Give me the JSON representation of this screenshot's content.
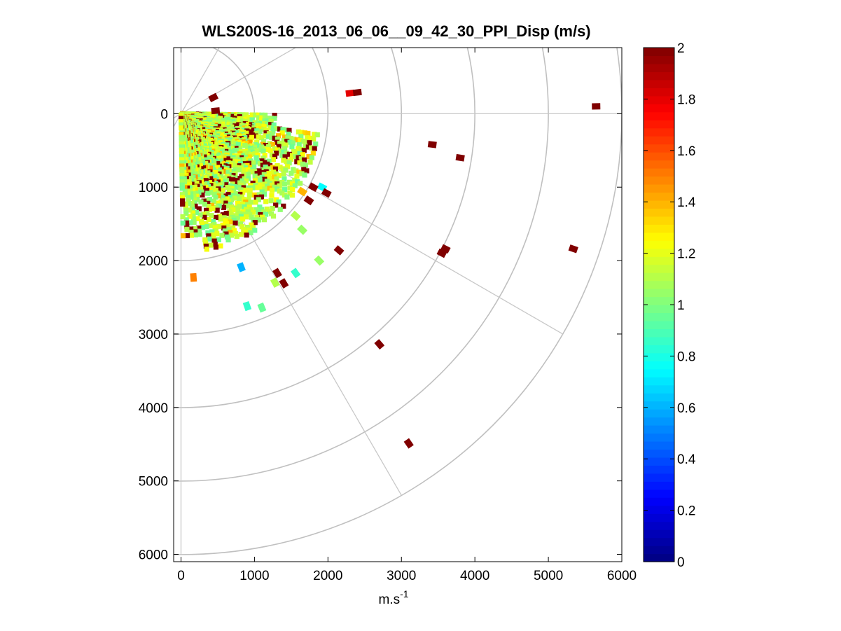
{
  "chart_data": {
    "type": "heatmap",
    "subtype": "polar-ppi",
    "title": "WLS200S-16_2013_06_06__09_42_30_PPI_Disp (m/s)",
    "xlabel_base": "m.s",
    "xlabel_sup": "-1",
    "ylabel": "",
    "xlim": [
      -100,
      6000
    ],
    "ylim": [
      6100,
      -900
    ],
    "y_reversed": true,
    "x_ticks": [
      "0",
      "1000",
      "2000",
      "3000",
      "4000",
      "5000",
      "6000"
    ],
    "y_ticks": [
      "0",
      "1000",
      "2000",
      "3000",
      "4000",
      "5000",
      "6000"
    ],
    "colorbar": {
      "colormap": "jet",
      "range": [
        0,
        2
      ],
      "tick_labels": [
        "0",
        "0.2",
        "0.4",
        "0.6",
        "0.8",
        "1",
        "1.2",
        "1.4",
        "1.6",
        "1.8",
        "2"
      ]
    },
    "polar_grid": {
      "range_rings_m": [
        1000,
        2000,
        3000,
        4000,
        5000,
        6000
      ],
      "spoke_angles_deg": [
        0,
        30,
        60,
        90,
        120
      ],
      "grid": true
    },
    "dense_region": {
      "angle_start_deg": 0,
      "angle_end_deg": 90,
      "range_m": [
        0,
        1900
      ],
      "note": "values mostly 0.9-1.2"
    },
    "points": [
      {
        "x": 440,
        "y": -220,
        "v": 2.0
      },
      {
        "x": 470,
        "y": -40,
        "v": 2.0
      },
      {
        "x": 2300,
        "y": -280,
        "v": 1.8
      },
      {
        "x": 2400,
        "y": -290,
        "v": 2.0
      },
      {
        "x": 5650,
        "y": -100,
        "v": 2.0
      },
      {
        "x": 3420,
        "y": 420,
        "v": 2.0
      },
      {
        "x": 3800,
        "y": 600,
        "v": 2.0
      },
      {
        "x": 1920,
        "y": 1000,
        "v": 0.75
      },
      {
        "x": 1980,
        "y": 1080,
        "v": 2.0
      },
      {
        "x": 1650,
        "y": 1060,
        "v": 1.4
      },
      {
        "x": 1740,
        "y": 1180,
        "v": 2.0
      },
      {
        "x": 1560,
        "y": 1390,
        "v": 1.1
      },
      {
        "x": 1650,
        "y": 1580,
        "v": 1.05
      },
      {
        "x": 2150,
        "y": 1860,
        "v": 2.0
      },
      {
        "x": 1880,
        "y": 2000,
        "v": 1.05
      },
      {
        "x": 3600,
        "y": 1840,
        "v": 2.0
      },
      {
        "x": 5340,
        "y": 1840,
        "v": 2.0
      },
      {
        "x": 820,
        "y": 2090,
        "v": 0.6
      },
      {
        "x": 170,
        "y": 2230,
        "v": 1.5
      },
      {
        "x": 1310,
        "y": 2170,
        "v": 2.0
      },
      {
        "x": 1400,
        "y": 2310,
        "v": 2.0
      },
      {
        "x": 1560,
        "y": 2170,
        "v": 0.85
      },
      {
        "x": 1280,
        "y": 2300,
        "v": 1.1
      },
      {
        "x": 900,
        "y": 2620,
        "v": 0.85
      },
      {
        "x": 1100,
        "y": 2640,
        "v": 0.95
      },
      {
        "x": 2700,
        "y": 3140,
        "v": 2.0
      },
      {
        "x": 3100,
        "y": 4490,
        "v": 2.0
      },
      {
        "x": 1800,
        "y": 1000,
        "v": 2.0
      },
      {
        "x": 3550,
        "y": 1900,
        "v": 2.0
      }
    ]
  }
}
